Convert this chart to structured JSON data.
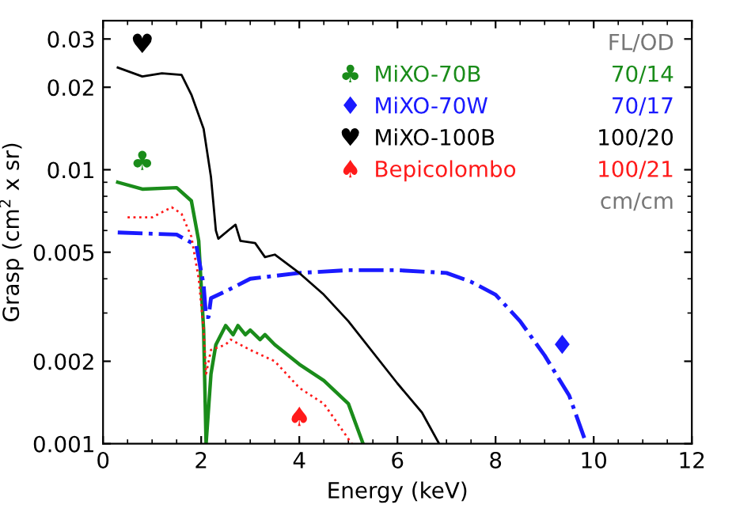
{
  "chart_data": {
    "type": "line",
    "xlabel": "Energy (keV)",
    "ylabel": "Grasp (cm$^{2}$ x sr)",
    "log": "y",
    "xlim": [
      0,
      12
    ],
    "xticks": [
      0,
      2,
      4,
      6,
      8,
      10,
      12
    ],
    "ylim": [
      0.001,
      0.035
    ],
    "yticks": [
      0.001,
      0.002,
      0.005,
      0.01,
      0.02,
      0.03
    ],
    "grid": false,
    "legend": "top right",
    "series": [
      {
        "name": "MiXO-70B",
        "color": "#1a8c1a",
        "line_style": "solid",
        "x": [
          0.3,
          0.8,
          1.5,
          1.8,
          1.95,
          2.05,
          2.1,
          2.2,
          2.3,
          2.5,
          2.65,
          2.75,
          2.9,
          3.0,
          3.2,
          3.3,
          3.5,
          4.0,
          4.5,
          5.0,
          5.3
        ],
        "values": [
          0.009,
          0.0085,
          0.0086,
          0.0077,
          0.0055,
          0.0026,
          0.001,
          0.0018,
          0.0023,
          0.0027,
          0.0025,
          0.0027,
          0.0025,
          0.0026,
          0.0024,
          0.0025,
          0.0023,
          0.00195,
          0.0017,
          0.0014,
          0.001
        ]
      },
      {
        "name": "MiXO-70W",
        "color": "#1a1aff",
        "line_style": "dashdot",
        "x": [
          0.3,
          1.5,
          1.9,
          2.05,
          2.1,
          2.15,
          2.2,
          2.5,
          3.0,
          4.0,
          5.0,
          6.0,
          7.0,
          7.5,
          8.0,
          8.5,
          9.0,
          9.5,
          9.85
        ],
        "values": [
          0.0059,
          0.0058,
          0.0053,
          0.0038,
          0.0029,
          0.0029,
          0.0034,
          0.0036,
          0.004,
          0.0042,
          0.0043,
          0.0043,
          0.0042,
          0.0039,
          0.0035,
          0.0028,
          0.0021,
          0.0015,
          0.001
        ]
      },
      {
        "name": "MiXO-100B",
        "color": "#000000",
        "line_style": "solid",
        "x": [
          0.3,
          0.8,
          1.2,
          1.6,
          1.8,
          2.05,
          2.2,
          2.3,
          2.35,
          2.6,
          2.7,
          2.8,
          3.1,
          3.3,
          3.5,
          4.0,
          4.5,
          5.0,
          6.0,
          6.5,
          6.85
        ],
        "values": [
          0.0236,
          0.0219,
          0.0225,
          0.0222,
          0.0188,
          0.0141,
          0.0094,
          0.006,
          0.0056,
          0.0061,
          0.0063,
          0.0055,
          0.0054,
          0.0048,
          0.0049,
          0.0042,
          0.0035,
          0.0028,
          0.00166,
          0.0013,
          0.001
        ]
      },
      {
        "name": "Bepicolombo",
        "color": "#ff1a1a",
        "line_style": "dotted",
        "x": [
          0.5,
          1.0,
          1.4,
          1.6,
          1.8,
          1.95,
          2.05,
          2.1,
          2.2,
          2.5,
          2.6,
          3.0,
          3.5,
          4.0,
          4.5,
          5.07
        ],
        "values": [
          0.0067,
          0.0067,
          0.0073,
          0.0069,
          0.0057,
          0.004,
          0.0026,
          0.0018,
          0.0022,
          0.0023,
          0.0024,
          0.0022,
          0.002,
          0.0016,
          0.0014,
          0.001
        ]
      }
    ],
    "annotations": [
      "♣",
      "♦",
      "♥",
      "♠",
      "FL/OD",
      "70/14",
      "70/17",
      "100/20",
      "100/21",
      "cm/cm"
    ]
  }
}
